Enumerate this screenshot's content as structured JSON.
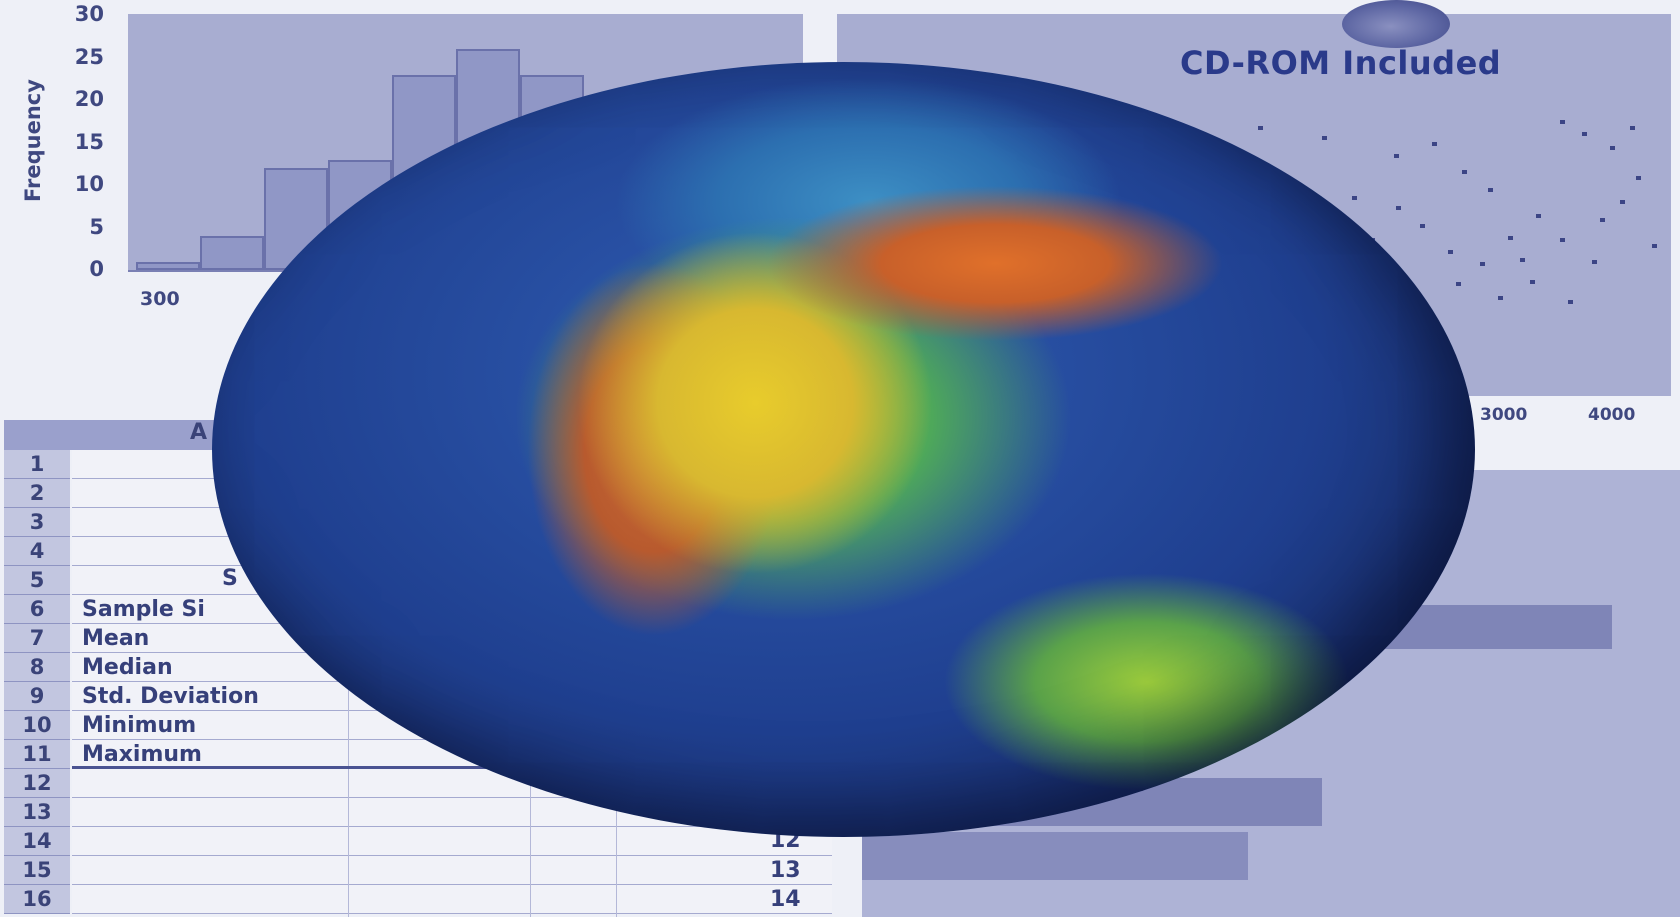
{
  "histogram": {
    "ylabel": "Frequency",
    "yticks": [
      "30",
      "25",
      "20",
      "15",
      "10",
      "5",
      "0"
    ],
    "xtick_first": "300",
    "bar_values": [
      1,
      4,
      12,
      13,
      23,
      26,
      23
    ]
  },
  "banner": {
    "text": "CD-ROM Included"
  },
  "scatter": {
    "xticks": [
      "3000",
      "4000"
    ]
  },
  "spreadsheet": {
    "column_header": "A",
    "rows": [
      "1",
      "2",
      "3",
      "4",
      "5",
      "6",
      "7",
      "8",
      "9",
      "10",
      "11",
      "12",
      "13",
      "14",
      "15",
      "16"
    ],
    "heading_fragment": "S",
    "labels": [
      "Sample Si",
      "Mean",
      "Median",
      "Std. Deviation",
      "Minimum",
      "Maximum"
    ],
    "right_numbers": [
      "12",
      "13",
      "14"
    ]
  },
  "colors": {
    "panel": "#a8add1",
    "text": "#3a4378",
    "accent": "#2a3a8a"
  }
}
